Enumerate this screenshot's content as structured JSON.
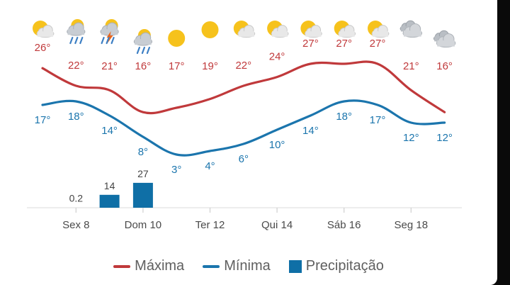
{
  "colors": {
    "max": "#c0393b",
    "min": "#1b75ad",
    "precip": "#0f6fa6",
    "tick_text": "#4a4a4a",
    "label_text": "#444444",
    "axis": "#e2e2e2"
  },
  "chart_data": {
    "type": "line",
    "x": [
      "7",
      "8",
      "9",
      "10",
      "11",
      "12",
      "13",
      "14",
      "15",
      "16",
      "17",
      "18",
      "19"
    ],
    "xticks": [
      {
        "day": "8",
        "label": "Sex 8"
      },
      {
        "day": "10",
        "label": "Dom 10"
      },
      {
        "day": "12",
        "label": "Ter 12"
      },
      {
        "day": "14",
        "label": "Qui 14"
      },
      {
        "day": "16",
        "label": "Sáb 16"
      },
      {
        "day": "18",
        "label": "Seg 18"
      }
    ],
    "icons": [
      "partly-cloudy-icon",
      "rain-cloud-icon",
      "thunderstorm-icon",
      "rain-cloud-icon",
      "sun-icon",
      "sun-icon",
      "partly-cloudy-icon",
      "partly-cloudy-icon",
      "partly-cloudy-icon",
      "partly-cloudy-icon",
      "partly-cloudy-icon",
      "cloudy-icon",
      "cloudy-icon"
    ],
    "series": [
      {
        "key": "max",
        "name": "Máxima",
        "values": [
          26,
          22,
          21,
          16,
          17,
          19,
          22,
          24,
          27,
          27,
          27,
          21,
          16
        ],
        "labels": [
          "26°",
          "22°",
          "21°",
          "16°",
          "17°",
          "19°",
          "22°",
          "24°",
          "27°",
          "27°",
          "27°",
          "21°",
          "16°"
        ]
      },
      {
        "key": "min",
        "name": "Mínima",
        "values": [
          17,
          18,
          14,
          8,
          3,
          4,
          6,
          10,
          14,
          18,
          17,
          12,
          12
        ],
        "labels": [
          "17°",
          "18°",
          "14°",
          "8°",
          "3°",
          "4°",
          "6°",
          "10°",
          "14°",
          "18°",
          "17°",
          "12°",
          "12°"
        ]
      }
    ],
    "precipitation": {
      "name": "Precipitação",
      "values": [
        null,
        0.2,
        14,
        27,
        null,
        null,
        null,
        null,
        null,
        null,
        null,
        null,
        null
      ],
      "labels": [
        "",
        "0.2",
        "14",
        "27",
        "",
        "",
        "",
        "",
        "",
        "",
        "",
        "",
        ""
      ]
    },
    "legend_position": "bottom-center",
    "grid": false
  }
}
